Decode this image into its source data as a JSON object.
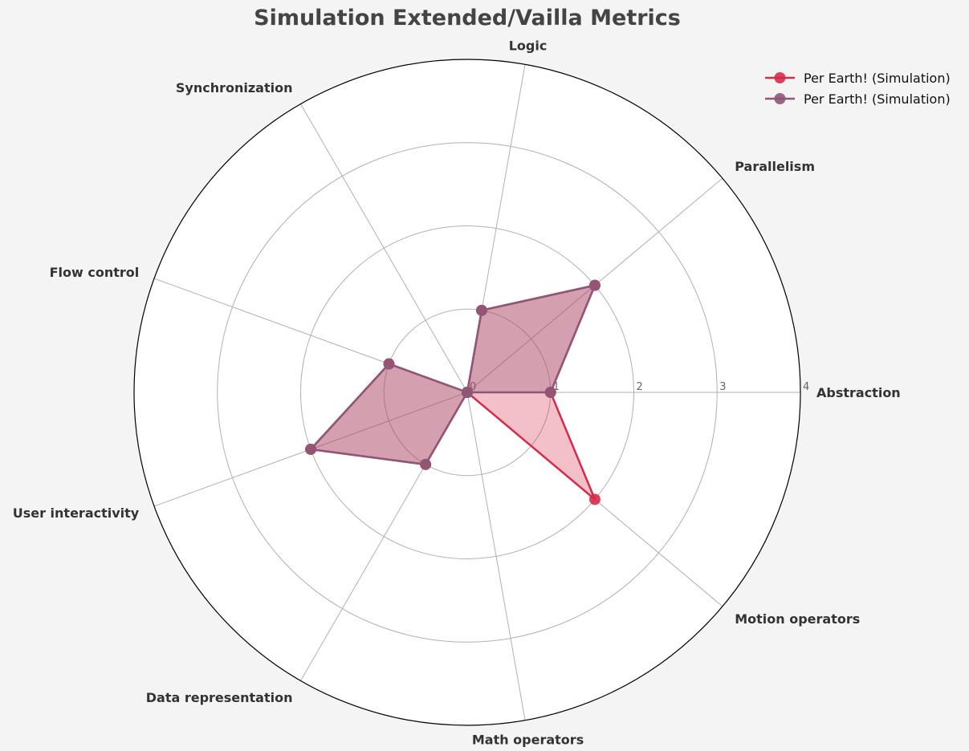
{
  "chart_data": {
    "type": "radar",
    "title": "Simulation Extended/Vailla Metrics",
    "categories": [
      "Abstraction",
      "Parallelism",
      "Logic",
      "Synchronization",
      "Flow control",
      "User interactivity",
      "Data representation",
      "Math operators",
      "Motion operators"
    ],
    "rlim": [
      0,
      4
    ],
    "rticks": [
      "0",
      "1",
      "2",
      "3",
      "4"
    ],
    "grid": true,
    "legend_position": "top-right",
    "series": [
      {
        "name": "Per Earth! (Simulation)",
        "color": "#d62a4a",
        "values": [
          1,
          2,
          1,
          0,
          1,
          2,
          1,
          0,
          2
        ]
      },
      {
        "name": "Per Earth! (Simulation)",
        "color": "#8f5678",
        "values": [
          1,
          2,
          1,
          0,
          1,
          2,
          1,
          0,
          0
        ]
      }
    ]
  }
}
